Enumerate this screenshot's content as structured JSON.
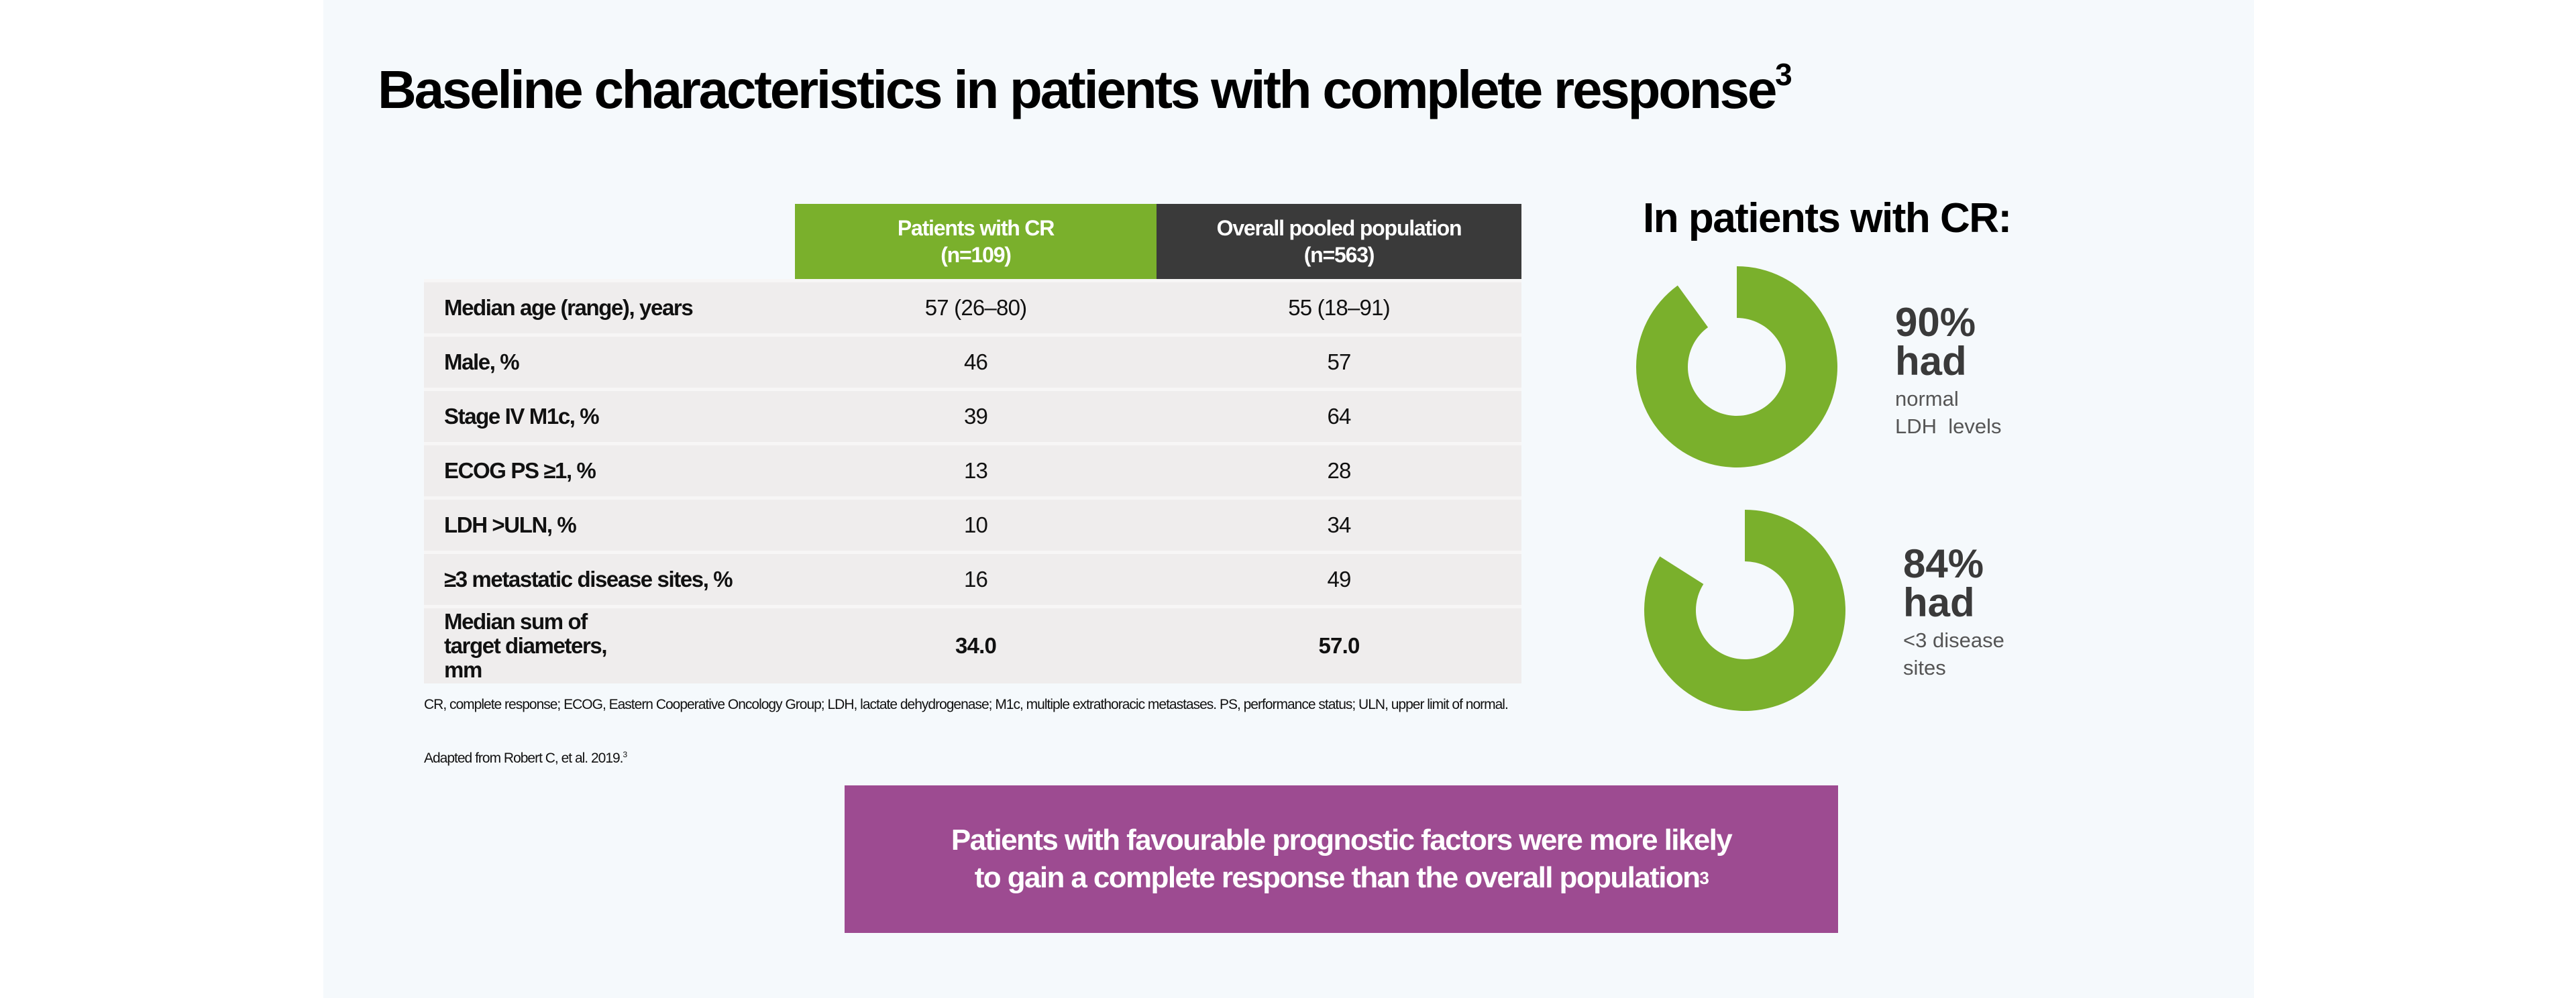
{
  "title": {
    "text": "Baseline characteristics in patients with complete response",
    "sup": "3"
  },
  "table": {
    "headers": [
      {
        "line1": "Patients with CR",
        "line2": "(n=109)"
      },
      {
        "line1": "Overall pooled population",
        "line2": "(n=563)"
      }
    ],
    "rows": [
      {
        "label": "Median age (range), years",
        "cr": "57 (26–80)",
        "pooled": "55 (18–91)"
      },
      {
        "label": "Male, %",
        "cr": "46",
        "pooled": "57"
      },
      {
        "label": "Stage IV M1c, %",
        "cr": "39",
        "pooled": "64"
      },
      {
        "label": "ECOG PS ≥1, %",
        "cr": "13",
        "pooled": "28"
      },
      {
        "label": "LDH >ULN, %",
        "cr": "10",
        "pooled": "34"
      },
      {
        "label": "≥3 metastatic disease sites, %",
        "cr": "16",
        "pooled": "49"
      },
      {
        "label": "Median sum of target diameters, mm",
        "cr": "34.0",
        "pooled": "57.0"
      }
    ]
  },
  "footnote": "CR, complete response; ECOG, Eastern Cooperative Oncology Group; LDH, lactate dehydrogenase; M1c, multiple extrathoracic metastases. PS, performance status; ULN, upper limit of normal.",
  "adapted": {
    "text": "Adapted from Robert C, et al. 2019.",
    "sup": "3"
  },
  "callout": {
    "line1": "Patients with favourable prognostic factors were more likely",
    "line2": "to gain a complete response than the overall population",
    "sup": "3"
  },
  "right": {
    "heading": "In patients with CR:",
    "stats": [
      {
        "percent": 90,
        "pct_label": "90%",
        "had": "had",
        "line1": "normal",
        "line2": "LDH  levels"
      },
      {
        "percent": 84,
        "pct_label": "84%",
        "had": "had",
        "line1": "<3 disease",
        "line2": "sites"
      }
    ]
  },
  "colors": {
    "green": "#7ab02c",
    "dark": "#3a3a3a",
    "purple": "#9d4b91",
    "row_bg": "#efeded"
  }
}
